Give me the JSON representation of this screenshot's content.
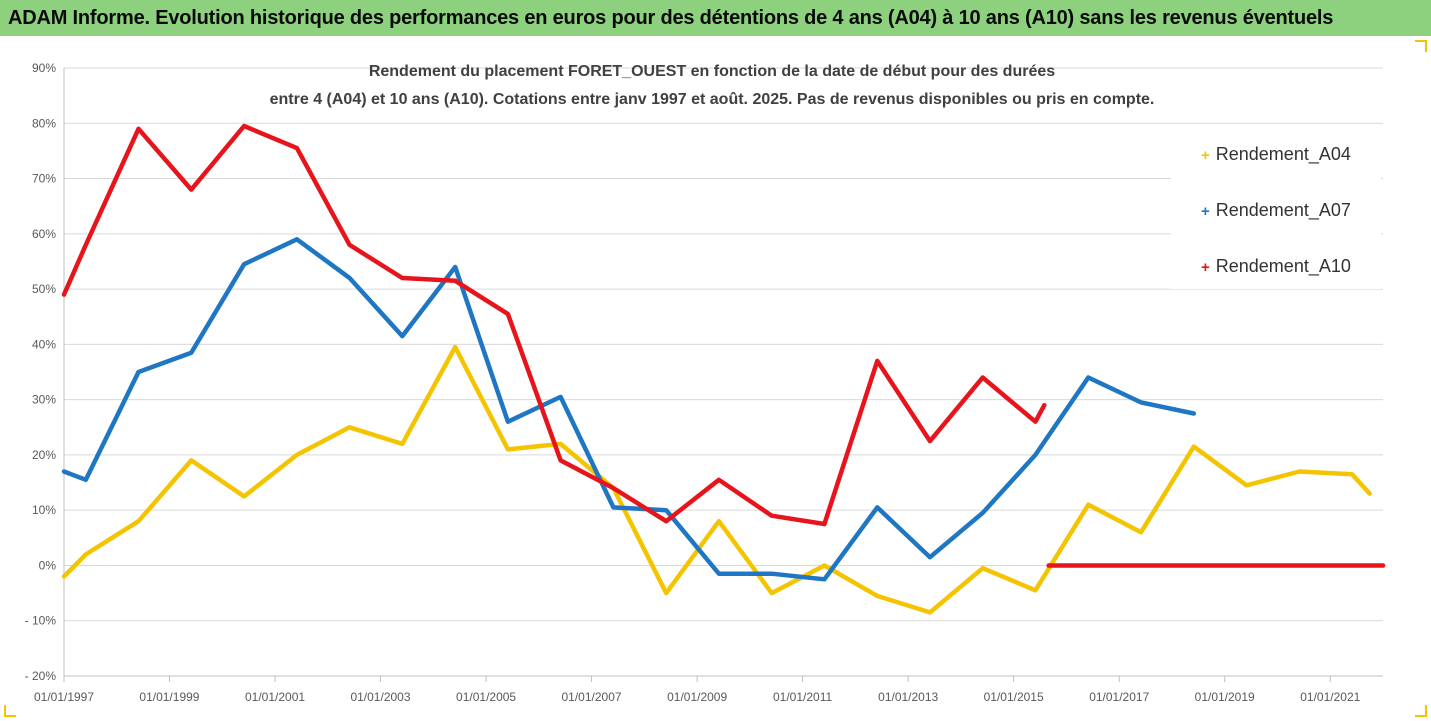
{
  "banner": {
    "title": "ADAM Informe. Evolution historique des performances en euros pour des détentions de 4 ans (A04) à 10 ans (A10) sans les revenus éventuels"
  },
  "colors": {
    "banner_bg": "#8dd17f",
    "a04": "#f5c400",
    "a07": "#1f77c4",
    "a10": "#e8141c",
    "grid": "#d9d9d9",
    "corner_accent": "#f5c400"
  },
  "chart_data": {
    "type": "line",
    "title_lines": [
      "Rendement du placement FORET_OUEST en fonction de la date de début pour des durées",
      "entre 4 (A04) et 10 ans (A10). Cotations entre janv 1997 et août. 2025. Pas de revenus disponibles ou pris en compte."
    ],
    "xlabel": "",
    "ylabel": "",
    "x_range": [
      "1997-01-01",
      "2022-01-01"
    ],
    "ylim": [
      -20,
      90
    ],
    "yticks": [
      -20,
      -10,
      0,
      10,
      20,
      30,
      40,
      50,
      60,
      70,
      80,
      90
    ],
    "ytick_labels": [
      "- 20%",
      "- 10%",
      "0%",
      "10%",
      "20%",
      "30%",
      "40%",
      "50%",
      "60%",
      "70%",
      "80%",
      "90%"
    ],
    "xtick_labels": [
      "01/01/1997",
      "01/01/1999",
      "01/01/2001",
      "01/01/2003",
      "01/01/2005",
      "01/01/2007",
      "01/01/2009",
      "01/01/2011",
      "01/01/2013",
      "01/01/2015",
      "01/01/2017",
      "01/01/2019",
      "01/01/2021"
    ],
    "grid": "horizontal",
    "legend_position": "right",
    "series": [
      {
        "name": "Rendement_A04",
        "color": "#f5c400",
        "points": [
          [
            "1997-01-01",
            -2
          ],
          [
            "1997-06-01",
            2
          ],
          [
            "1998-06-01",
            8
          ],
          [
            "1999-06-01",
            19
          ],
          [
            "2000-06-01",
            12.5
          ],
          [
            "2001-06-01",
            20
          ],
          [
            "2002-06-01",
            25
          ],
          [
            "2003-06-01",
            22
          ],
          [
            "2004-06-01",
            39.5
          ],
          [
            "2005-06-01",
            21
          ],
          [
            "2006-06-01",
            22
          ],
          [
            "2007-06-01",
            14
          ],
          [
            "2008-06-01",
            -5
          ],
          [
            "2009-06-01",
            8
          ],
          [
            "2010-06-01",
            -5
          ],
          [
            "2011-06-01",
            0
          ],
          [
            "2012-06-01",
            -5.5
          ],
          [
            "2013-06-01",
            -8.5
          ],
          [
            "2014-06-01",
            -0.5
          ],
          [
            "2015-06-01",
            -4.5
          ],
          [
            "2016-06-01",
            11
          ],
          [
            "2017-06-01",
            6
          ],
          [
            "2018-06-01",
            21.5
          ],
          [
            "2019-06-01",
            14.5
          ],
          [
            "2020-06-01",
            17
          ],
          [
            "2021-06-01",
            16.5
          ],
          [
            "2021-10-01",
            13
          ]
        ]
      },
      {
        "name": "Rendement_A07",
        "color": "#1f77c4",
        "points": [
          [
            "1997-01-01",
            17
          ],
          [
            "1997-06-01",
            15.5
          ],
          [
            "1998-06-01",
            35
          ],
          [
            "1999-06-01",
            38.5
          ],
          [
            "2000-06-01",
            54.5
          ],
          [
            "2001-06-01",
            59
          ],
          [
            "2002-06-01",
            52
          ],
          [
            "2003-06-01",
            41.5
          ],
          [
            "2004-06-01",
            54
          ],
          [
            "2005-06-01",
            26
          ],
          [
            "2006-06-01",
            30.5
          ],
          [
            "2007-06-01",
            10.5
          ],
          [
            "2008-06-01",
            10
          ],
          [
            "2009-06-01",
            -1.5
          ],
          [
            "2010-06-01",
            -1.5
          ],
          [
            "2011-06-01",
            -2.5
          ],
          [
            "2012-06-01",
            10.5
          ],
          [
            "2013-06-01",
            1.5
          ],
          [
            "2014-06-01",
            9.5
          ],
          [
            "2015-06-01",
            20
          ],
          [
            "2016-06-01",
            34
          ],
          [
            "2017-06-01",
            29.5
          ],
          [
            "2018-06-01",
            27.5
          ]
        ]
      },
      {
        "name": "Rendement_A10",
        "color": "#e8141c",
        "points": [
          [
            "1997-01-01",
            49
          ],
          [
            "1997-06-01",
            58
          ],
          [
            "1998-06-01",
            79
          ],
          [
            "1999-06-01",
            68
          ],
          [
            "2000-06-01",
            79.5
          ],
          [
            "2001-06-01",
            75.5
          ],
          [
            "2002-06-01",
            58
          ],
          [
            "2003-06-01",
            52
          ],
          [
            "2004-06-01",
            51.5
          ],
          [
            "2005-06-01",
            45.5
          ],
          [
            "2006-06-01",
            19
          ],
          [
            "2007-06-01",
            14
          ],
          [
            "2008-06-01",
            8
          ],
          [
            "2009-06-01",
            15.5
          ],
          [
            "2010-06-01",
            9
          ],
          [
            "2011-06-01",
            7.5
          ],
          [
            "2012-06-01",
            37
          ],
          [
            "2013-06-01",
            22.5
          ],
          [
            "2014-06-01",
            34
          ],
          [
            "2015-06-01",
            26
          ],
          [
            "2015-08-01",
            29
          ]
        ]
      },
      {
        "name": "Rendement_A10 (zero segment)",
        "color": "#e8141c",
        "points": [
          [
            "2015-09-01",
            0
          ],
          [
            "2022-01-01",
            0
          ]
        ]
      }
    ]
  }
}
